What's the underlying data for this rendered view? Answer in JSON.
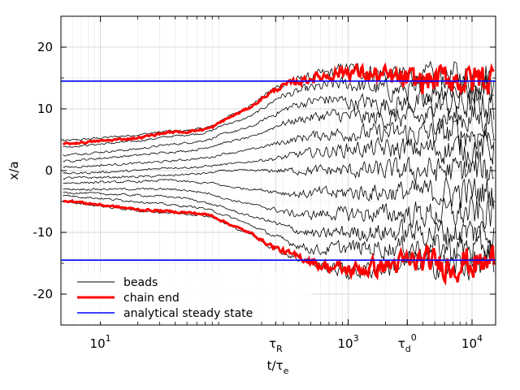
{
  "chart_data": {
    "type": "line",
    "xlabel": {
      "main": "t/τ",
      "sub": "e"
    },
    "ylabel": "x/a",
    "x_scale": "log",
    "xlim": [
      4.8,
      15500
    ],
    "ylim": [
      -25,
      25
    ],
    "grid": true,
    "legend_position": "lower-left",
    "x_ticks": [
      {
        "value": 10,
        "base": "10",
        "sup": "1",
        "sub": ""
      },
      {
        "value": 260,
        "base": "τ",
        "sup": "",
        "sub": "R"
      },
      {
        "value": 1000,
        "base": "10",
        "sup": "3",
        "sub": ""
      },
      {
        "value": 3000,
        "base": "τ",
        "sup": "0",
        "sub": "d"
      },
      {
        "value": 10000,
        "base": "10",
        "sup": "4",
        "sub": ""
      }
    ],
    "y_ticks": [
      {
        "value": 20,
        "label": "20"
      },
      {
        "value": 10,
        "label": "10"
      },
      {
        "value": 0,
        "label": "0"
      },
      {
        "value": -10,
        "label": "-10"
      },
      {
        "value": -20,
        "label": "-20"
      }
    ],
    "colors": {
      "beads": "#000000",
      "chain_end": "#ff0000",
      "steady_state": "#0000ff"
    },
    "series": [
      {
        "name": "beads",
        "kind": "bead-trajectories",
        "x": [
          5,
          20,
          35,
          50,
          65,
          80,
          100,
          130,
          170,
          220,
          280,
          360,
          460,
          600,
          800,
          1000,
          1500,
          2200,
          3200,
          4500,
          6500,
          9000,
          12000,
          15000
        ],
        "curves": [
          {
            "y": [
              4.8,
              5.8,
              6.4,
              6.5,
              6.8,
              7.2,
              8.5,
              9.5,
              10.8,
              12.5,
              13.8,
              14.5,
              15,
              15.5,
              16,
              16.5,
              16,
              15.5,
              15,
              15,
              15.5,
              15,
              15.5,
              15
            ]
          },
          {
            "y": [
              3.8,
              4.8,
              5.5,
              5.8,
              6.0,
              6.5,
              7.5,
              8.0,
              9.0,
              10.5,
              12.0,
              12.5,
              13.2,
              13.5,
              14.0,
              14.0,
              13.5,
              13.0,
              13.2,
              13.0,
              13.5,
              13.0,
              13.5,
              13.0
            ]
          },
          {
            "y": [
              2.5,
              3.5,
              4.2,
              4.5,
              4.8,
              5.2,
              6.0,
              6.5,
              7.2,
              8.5,
              9.5,
              10.5,
              11.0,
              11.5,
              11.5,
              11.0,
              11.0,
              10.5,
              11.0,
              10.5,
              11.0,
              10.5,
              11.0,
              10.5
            ]
          },
          {
            "y": [
              1.5,
              2.5,
              3.0,
              3.2,
              3.5,
              4.0,
              4.5,
              5.0,
              5.5,
              6.5,
              7.5,
              8.0,
              8.5,
              8.8,
              9.0,
              8.8,
              8.5,
              8.5,
              8.5,
              8.5,
              8.5,
              8.5,
              8.5,
              8.5
            ]
          },
          {
            "y": [
              0.5,
              1.2,
              1.5,
              1.8,
              2.0,
              2.2,
              2.8,
              3.0,
              3.5,
              4.0,
              4.5,
              5.0,
              5.5,
              5.8,
              6.0,
              6.0,
              6.0,
              6.0,
              6.0,
              6.0,
              6.0,
              6.0,
              6.0,
              6.0
            ]
          },
          {
            "y": [
              -0.5,
              0.0,
              0.5,
              0.5,
              0.6,
              0.8,
              1.0,
              1.2,
              1.5,
              1.8,
              2.0,
              2.5,
              2.8,
              3.0,
              3.2,
              3.5,
              3.5,
              3.5,
              3.5,
              3.5,
              3.5,
              3.5,
              3.5,
              3.5
            ]
          },
          {
            "y": [
              -1.2,
              -1.0,
              -0.8,
              -0.6,
              -0.5,
              -0.3,
              0.0,
              0.0,
              0.0,
              0.0,
              0.0,
              0.0,
              0.0,
              0.0,
              0.0,
              0.0,
              0.0,
              0.0,
              0.0,
              0.0,
              0.0,
              0.0,
              0.0,
              0.0
            ]
          },
          {
            "y": [
              -2.0,
              -1.8,
              -1.5,
              -1.8,
              -2.0,
              -2.0,
              -2.5,
              -2.8,
              -3.0,
              -3.2,
              -3.5,
              -3.8,
              -3.8,
              -3.5,
              -3.8,
              -3.5,
              -3.5,
              -3.5,
              -3.5,
              -3.5,
              -3.5,
              -3.5,
              -3.5,
              -3.5
            ]
          },
          {
            "y": [
              -3.0,
              -3.0,
              -3.0,
              -3.2,
              -3.5,
              -3.8,
              -4.5,
              -5.0,
              -5.5,
              -6.0,
              -6.5,
              -7.0,
              -7.2,
              -7.0,
              -7.0,
              -7.0,
              -7.0,
              -7.0,
              -7.0,
              -7.0,
              -7.0,
              -7.0,
              -7.0,
              -7.0
            ]
          },
          {
            "y": [
              -3.5,
              -4.0,
              -4.2,
              -4.5,
              -5.0,
              -5.5,
              -6.0,
              -6.8,
              -7.5,
              -8.0,
              -8.8,
              -9.5,
              -10.0,
              -10.5,
              -10.0,
              -10.0,
              -10.0,
              -10.0,
              -10.0,
              -10.0,
              -10.0,
              -10.0,
              -10.0,
              -10.0
            ]
          },
          {
            "y": [
              -4.0,
              -5.0,
              -5.5,
              -5.8,
              -6.0,
              -6.5,
              -7.2,
              -8.0,
              -9.0,
              -10.0,
              -11.0,
              -11.8,
              -12.5,
              -13.0,
              -12.5,
              -12.5,
              -12.5,
              -12.5,
              -12.5,
              -12.5,
              -12.5,
              -12.5,
              -12.5,
              -12.5
            ]
          },
          {
            "y": [
              -5.0,
              -6.5,
              -6.8,
              -7.0,
              -7.2,
              -7.5,
              -8.5,
              -9.5,
              -10.5,
              -12.0,
              -13.0,
              -14.0,
              -14.5,
              -15.5,
              -16.0,
              -16.5,
              -16.0,
              -15.5,
              -15.0,
              -15.0,
              -15.5,
              -15.0,
              -15.5,
              -15.0
            ]
          }
        ]
      },
      {
        "name": "chain end",
        "kind": "chain-ends",
        "x": [
          5,
          20,
          35,
          50,
          65,
          80,
          100,
          130,
          170,
          220,
          280,
          360,
          460,
          600,
          800,
          1000,
          1500,
          2200,
          3200,
          4500,
          6500,
          9000,
          12000,
          15000
        ],
        "curves": [
          {
            "y": [
              4.3,
              5.3,
              6.2,
              6.3,
              6.6,
              7.0,
              8.2,
              9.3,
              10.5,
              12.2,
              13.5,
              14.2,
              14.8,
              15.2,
              15.8,
              16.2,
              15.5,
              15.0,
              14.5,
              14.5,
              15.0,
              14.5,
              15.0,
              14.5
            ]
          },
          {
            "y": [
              -4.8,
              -6.3,
              -6.6,
              -6.8,
              -7.0,
              -7.3,
              -8.3,
              -9.3,
              -10.3,
              -11.8,
              -12.8,
              -13.8,
              -14.3,
              -15.3,
              -15.8,
              -16.2,
              -15.8,
              -15.3,
              -14.8,
              -14.8,
              -15.3,
              -14.8,
              -15.3,
              -14.8
            ]
          }
        ]
      },
      {
        "name": "analytical steady state",
        "kind": "steady-state",
        "values": [
          14.5,
          -14.5
        ]
      }
    ],
    "legend": [
      {
        "label": "beads",
        "style": "thin-black"
      },
      {
        "label": "chain end",
        "style": "thick-red"
      },
      {
        "label": "analytical steady state",
        "style": "blue"
      }
    ]
  }
}
